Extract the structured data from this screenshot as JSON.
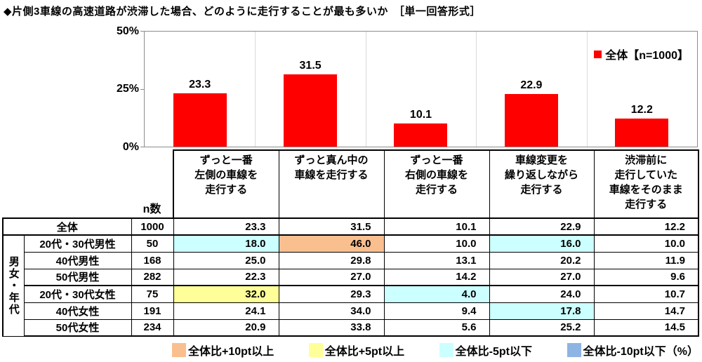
{
  "title": "◆片側3車線の高速道路が渋滞した場合、どのように走行することが最も多いか　［単一回答形式］",
  "colors": {
    "bar": "#ff0000",
    "orange": "#fabf8f",
    "yellow": "#ffff99",
    "cyan": "#ccffff",
    "blue": "#8db4e2"
  },
  "chart_data": {
    "type": "bar",
    "title": "片側3車線の高速道路が渋滞した場合、どのように走行することが最も多いか",
    "categories": [
      "ずっと一番左側の車線を走行する",
      "ずっと真ん中の車線を走行する",
      "ずっと一番右側の車線を走行する",
      "車線変更を繰り返しながら走行する",
      "渋滞前に走行していた車線をそのまま走行する"
    ],
    "values": [
      23.3,
      31.5,
      10.1,
      22.9,
      12.2
    ],
    "value_labels": [
      "23.3",
      "31.5",
      "10.1",
      "22.9",
      "12.2"
    ],
    "ylim": [
      0,
      50
    ],
    "yticks": [
      "50%",
      "25%",
      "0%"
    ],
    "grid": "vertical category separators, light gray",
    "legend_position": "top-right inside plot",
    "legend": {
      "label": "全体【n=1000】"
    },
    "xlabel": "",
    "ylabel": "%"
  },
  "table": {
    "n_header": "n数",
    "group_label": "男女・年代",
    "columns": [
      "ずっと一番\n左側の車線を\n走行する",
      "ずっと真ん中の\n車線を走行する",
      "ずっと一番\n右側の車線を\n走行する",
      "車線変更を\n繰り返しながら\n走行する",
      "渋滞前に\n走行していた\n車線をそのまま\n走行する"
    ],
    "rows": [
      {
        "label": "全体",
        "n": "1000",
        "values": [
          "23.3",
          "31.5",
          "10.1",
          "22.9",
          "12.2"
        ],
        "highlights": [
          "",
          "",
          "",
          "",
          ""
        ]
      },
      {
        "label": "20代・30代男性",
        "n": "50",
        "values": [
          "18.0",
          "46.0",
          "10.0",
          "16.0",
          "10.0"
        ],
        "highlights": [
          "cyan",
          "orange",
          "",
          "cyan",
          ""
        ]
      },
      {
        "label": "40代男性",
        "n": "168",
        "values": [
          "25.0",
          "29.8",
          "13.1",
          "20.2",
          "11.9"
        ],
        "highlights": [
          "",
          "",
          "",
          "",
          ""
        ]
      },
      {
        "label": "50代男性",
        "n": "282",
        "values": [
          "22.3",
          "27.0",
          "14.2",
          "27.0",
          "9.6"
        ],
        "highlights": [
          "",
          "",
          "",
          "",
          ""
        ]
      },
      {
        "label": "20代・30代女性",
        "n": "75",
        "values": [
          "32.0",
          "29.3",
          "4.0",
          "24.0",
          "10.7"
        ],
        "highlights": [
          "yellow",
          "",
          "cyan",
          "",
          ""
        ]
      },
      {
        "label": "40代女性",
        "n": "191",
        "values": [
          "24.1",
          "34.0",
          "9.4",
          "17.8",
          "14.7"
        ],
        "highlights": [
          "",
          "",
          "",
          "cyan",
          ""
        ]
      },
      {
        "label": "50代女性",
        "n": "234",
        "values": [
          "20.9",
          "33.8",
          "5.6",
          "25.2",
          "14.5"
        ],
        "highlights": [
          "",
          "",
          "",
          "",
          ""
        ]
      }
    ]
  },
  "bottom_legend": {
    "items": [
      {
        "label": "全体比+10pt以上",
        "color_key": "orange"
      },
      {
        "label": "全体比+5pt以上",
        "color_key": "yellow"
      },
      {
        "label": "全体比-5pt以下",
        "color_key": "cyan"
      },
      {
        "label": "全体比-10pt以下（%）",
        "color_key": "blue"
      }
    ]
  }
}
